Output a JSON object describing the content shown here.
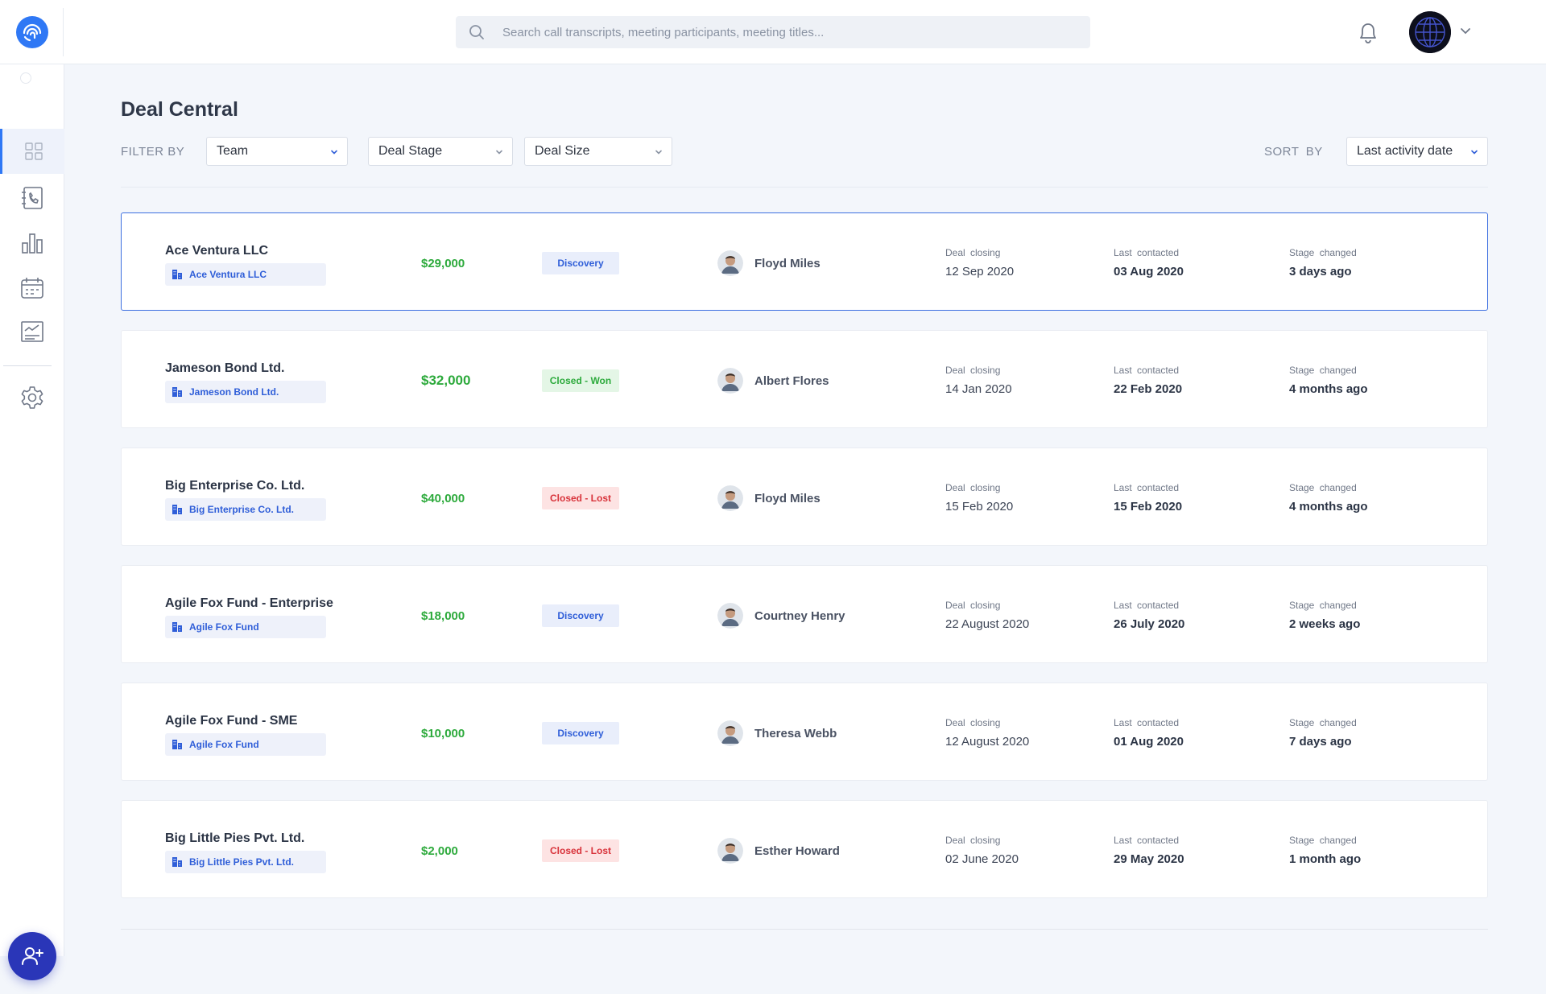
{
  "search": {
    "placeholder": "Search call transcripts, meeting participants, meeting titles..."
  },
  "page": {
    "title": "Deal Central"
  },
  "filters": {
    "label": "FILTER BY",
    "items": [
      {
        "value": "Team"
      },
      {
        "value": "Deal Stage"
      },
      {
        "value": "Deal Size"
      }
    ]
  },
  "sort": {
    "label": "SORT  BY",
    "value": "Last activity date"
  },
  "colors": {
    "accent": "#2f78f5",
    "fab": "#2a36b8",
    "amount": "#2daa3c",
    "won": "#2daa3c",
    "lost": "#d8323a",
    "discovery": "#2f5ed8"
  },
  "sidebar": {
    "items": [
      {
        "icon": "dashboard-icon",
        "active": true
      },
      {
        "icon": "call-log-icon"
      },
      {
        "icon": "bar-chart-icon"
      },
      {
        "icon": "calendar-icon"
      },
      {
        "icon": "report-icon"
      },
      {
        "icon": "settings-icon"
      }
    ],
    "fab_icon": "add-user-icon"
  },
  "deals": [
    {
      "name": "Ace Ventura LLC",
      "account": "Ace Ventura LLC",
      "amount": "$29,000",
      "stage": "Discovery",
      "stage_type": "discovery",
      "owner": "Floyd Miles",
      "closing_label": "Deal  closing",
      "closing": "12 Sep 2020",
      "contacted_label": "Last contacted",
      "contacted": "03 Aug 2020",
      "stage_changed_label": "Stage changed",
      "stage_changed": "3 days ago"
    },
    {
      "name": "Jameson Bond Ltd.",
      "account": "Jameson Bond Ltd.",
      "amount": "$32,000",
      "stage": "Closed - Won",
      "stage_type": "won",
      "owner": "Albert Flores",
      "closing_label": "Deal  closing",
      "closing": "14 Jan 2020",
      "contacted_label": "Last contacted",
      "contacted": "22 Feb 2020",
      "stage_changed_label": "Stage changed",
      "stage_changed": "4 months ago"
    },
    {
      "name": "Big Enterprise Co. Ltd.",
      "account": "Big Enterprise Co. Ltd.",
      "amount": "$40,000",
      "stage": "Closed - Lost",
      "stage_type": "lost",
      "owner": "Floyd Miles",
      "closing_label": "Deal  closing",
      "closing": "15 Feb 2020",
      "contacted_label": "Last contacted",
      "contacted": "15 Feb 2020",
      "stage_changed_label": "Stage changed",
      "stage_changed": "4 months ago"
    },
    {
      "name": "Agile Fox Fund - Enterprise",
      "account": "Agile Fox Fund",
      "amount": "$18,000",
      "stage": "Discovery",
      "stage_type": "discovery",
      "owner": "Courtney Henry",
      "closing_label": "Deal  closing",
      "closing": "22 August 2020",
      "contacted_label": "Last contacted",
      "contacted": "26 July 2020",
      "stage_changed_label": "Stage changed",
      "stage_changed": "2 weeks ago"
    },
    {
      "name": "Agile Fox Fund - SME",
      "account": "Agile Fox Fund",
      "amount": "$10,000",
      "stage": "Discovery",
      "stage_type": "discovery",
      "owner": "Theresa Webb",
      "closing_label": "Deal  closing",
      "closing": "12 August 2020",
      "contacted_label": "Last contacted",
      "contacted": "01 Aug 2020",
      "stage_changed_label": "Stage changed",
      "stage_changed": "7 days ago"
    },
    {
      "name": "Big Little Pies Pvt. Ltd.",
      "account": "Big Little Pies Pvt. Ltd.",
      "amount": "$2,000",
      "stage": "Closed - Lost",
      "stage_type": "lost",
      "owner": "Esther Howard",
      "closing_label": "Deal  closing",
      "closing": "02 June 2020",
      "contacted_label": "Last contacted",
      "contacted": "29 May 2020",
      "stage_changed_label": "Stage changed",
      "stage_changed": "1 month ago"
    }
  ]
}
